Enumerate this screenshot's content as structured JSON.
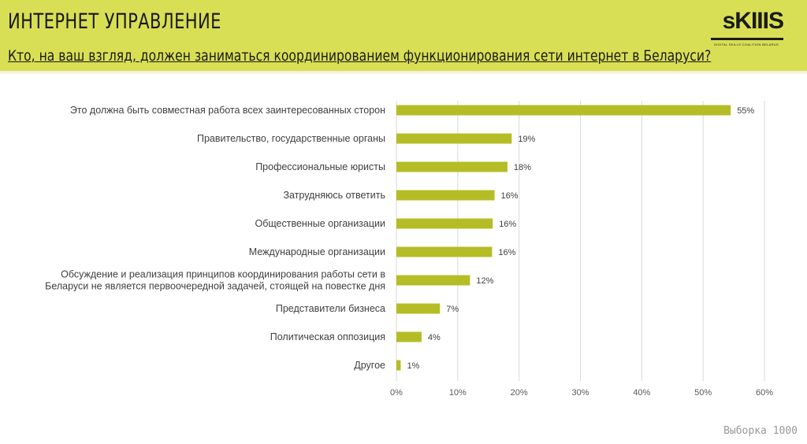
{
  "header": {
    "title": "ИНТЕРНЕТ УПРАВЛЕНИЕ",
    "question": "Кто, на ваш взгляд, должен заниматься координированием функционирования сети интернет в Беларуси?",
    "logo_text": "sKIIIS",
    "logo_subtext": "DIGITAL SKILLS COALITION BELARUS"
  },
  "footer": {
    "sample": "Выборка 1000"
  },
  "colors": {
    "header_bg": "#d9df55",
    "bar": "#b5bd26",
    "grid": "#d9d9d9"
  },
  "chart_data": {
    "type": "bar",
    "orientation": "horizontal",
    "categories": [
      [
        "Это должна быть совместная работа всех заинтересованных сторон"
      ],
      [
        "Правительство, государственные органы"
      ],
      [
        "Профессиональные юристы"
      ],
      [
        "Затрудняюсь ответить"
      ],
      [
        "Общественные организации"
      ],
      [
        "Международные организации"
      ],
      [
        "Обсуждение и реализация принципов координирования работы сети в",
        "Беларуси не является первоочередной задачей, стоящей на повестке дня"
      ],
      [
        "Представители бизнеса"
      ],
      [
        "Политическая оппозиция"
      ],
      [
        "Другое"
      ]
    ],
    "values": [
      54.5,
      18.8,
      18.1,
      16.0,
      15.7,
      15.6,
      12.0,
      7.1,
      4.1,
      0.7
    ],
    "data_labels": [
      "55%",
      "19%",
      "18%",
      "16%",
      "16%",
      "16%",
      "12%",
      "7%",
      "4%",
      "1%"
    ],
    "xlim": [
      0,
      60
    ],
    "xticks": [
      "0%",
      "10%",
      "20%",
      "30%",
      "40%",
      "50%",
      "60%"
    ],
    "grid": true,
    "title": "",
    "xlabel": "",
    "ylabel": ""
  }
}
